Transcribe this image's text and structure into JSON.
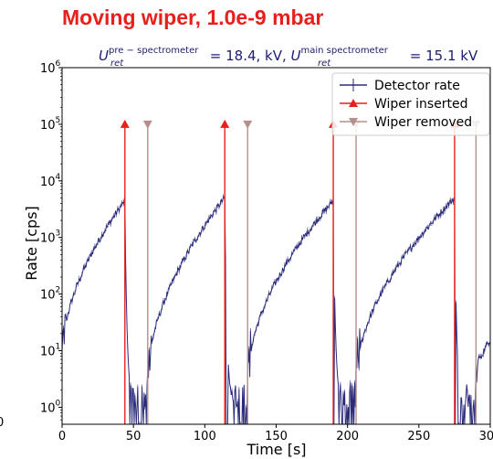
{
  "chart_data": {
    "type": "line",
    "title": "Moving wiper, 1.0e-9 mbar",
    "subtitle": {
      "u1_symbol": "U",
      "u1_sup": "pre − spectrometer",
      "u1_sub": "ret",
      "u1_rest": " = 18.4, kV, ",
      "u2_symbol": "U",
      "u2_sup": "main  spectrometer",
      "u2_sub": "ret",
      "u2_rest": " = 15.1 kV"
    },
    "xlabel": "Time [s]",
    "ylabel": "Rate [cps]",
    "xlim": [
      0,
      300
    ],
    "ylog": true,
    "ylim_exp": [
      -0.3,
      6
    ],
    "x_ticks": [
      "0",
      "50",
      "100",
      "150",
      "200",
      "250",
      "300"
    ],
    "x_tick_values": [
      0,
      50,
      100,
      150,
      200,
      250,
      300
    ],
    "y_ticks": [
      {
        "base": "10",
        "exp": "0",
        "value": 0
      },
      {
        "base": "10",
        "exp": "1",
        "value": 1
      },
      {
        "base": "10",
        "exp": "2",
        "value": 2
      },
      {
        "base": "10",
        "exp": "3",
        "value": 3
      },
      {
        "base": "10",
        "exp": "4",
        "value": 4
      },
      {
        "base": "10",
        "exp": "5",
        "value": 5
      },
      {
        "base": "10",
        "exp": "6",
        "value": 6
      }
    ],
    "stray_left_label": "0",
    "legend": {
      "position": "top-right",
      "entries": [
        "Detector rate",
        "Wiper inserted",
        "Wiper removed"
      ]
    },
    "series": [
      {
        "name": "Detector rate",
        "color": "#2b2b7a",
        "cycles": [
          {
            "start": 0,
            "end": 44,
            "peak_exp": 3.65,
            "start_exp": 0.9
          },
          {
            "start": 60,
            "end": 114,
            "peak_exp": 3.7,
            "start_exp": 0.5
          },
          {
            "start": 130,
            "end": 190,
            "peak_exp": 3.65,
            "start_exp": 0.5
          },
          {
            "start": 206,
            "end": 275,
            "peak_exp": 3.7,
            "start_exp": 0.5
          },
          {
            "start": 290,
            "end": 300,
            "peak_exp": 1.2,
            "start_exp": 0.5
          }
        ]
      },
      {
        "name": "Wiper inserted",
        "color": "#e8201c",
        "x": [
          44,
          114,
          190,
          275
        ],
        "y_exp": 5
      },
      {
        "name": "Wiper removed",
        "color": "#b5908b",
        "x": [
          60,
          130,
          206,
          290
        ],
        "y_exp": 5
      }
    ]
  }
}
